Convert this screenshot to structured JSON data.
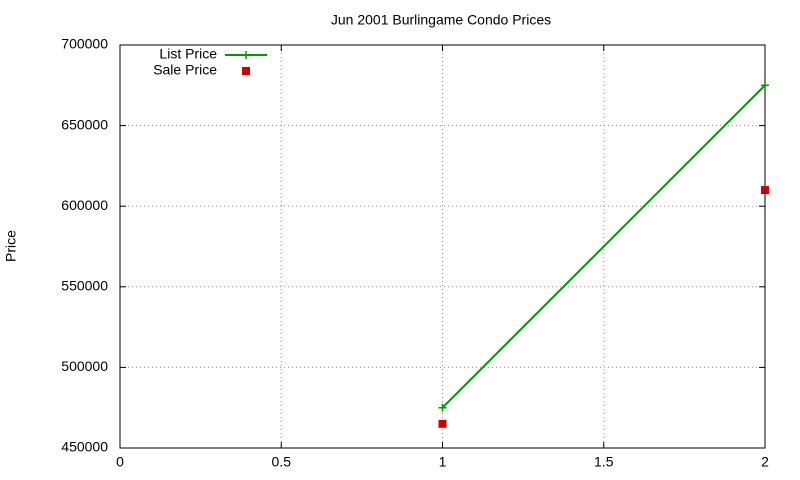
{
  "chart_data": {
    "type": "line",
    "title": "Jun 2001 Burlingame Condo Prices",
    "y_label": "Price",
    "x": [
      1,
      2
    ],
    "series": [
      {
        "name": "List Price",
        "color": "#009900",
        "values": [
          475000,
          675000
        ],
        "line": true,
        "marker": "plus"
      },
      {
        "name": "Sale Price",
        "color": "#cc0000",
        "values": [
          465000,
          610000
        ],
        "line": false,
        "marker": "square"
      }
    ],
    "xlim": [
      0,
      2
    ],
    "xticks": [
      0,
      0.5,
      1,
      1.5,
      2
    ],
    "ylim": [
      450000,
      700000
    ],
    "yticks": [
      450000,
      500000,
      550000,
      600000,
      650000,
      700000
    ],
    "grid": true,
    "legend": "top-left"
  }
}
